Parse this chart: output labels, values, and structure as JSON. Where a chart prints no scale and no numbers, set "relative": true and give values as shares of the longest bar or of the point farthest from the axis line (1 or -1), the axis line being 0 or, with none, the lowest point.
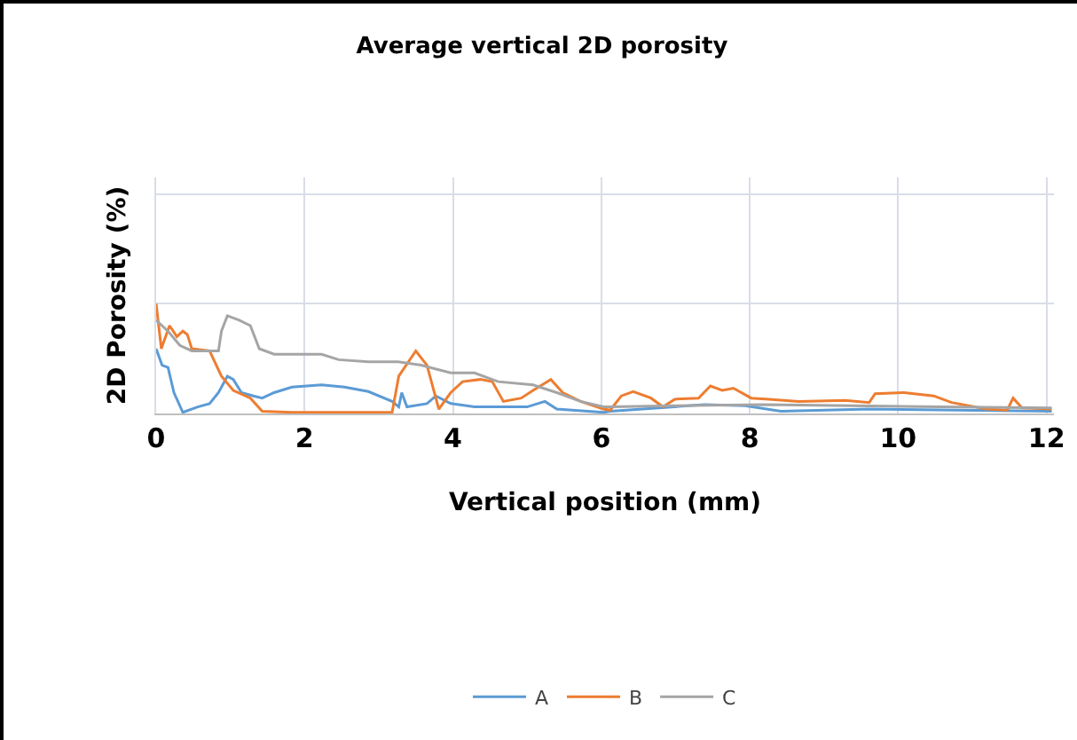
{
  "chart_data": {
    "type": "line",
    "title": "Average vertical 2D porosity",
    "xlabel": "Vertical position (mm)",
    "ylabel": "2D Porosity (%)",
    "relative": true,
    "xlim": [
      0,
      12.1
    ],
    "xticks": [
      0,
      2,
      4,
      6,
      8,
      10,
      12
    ],
    "grid": true,
    "legend": "bottom",
    "marker": "none",
    "line_style": "solid",
    "series": [
      {
        "name": "A",
        "color": "#5b9bd5",
        "x": [
          0,
          0.08,
          0.16,
          0.24,
          0.36,
          0.56,
          0.72,
          0.84,
          0.96,
          1.04,
          1.15,
          1.31,
          1.43,
          1.59,
          1.83,
          2.23,
          2.54,
          2.86,
          3.18,
          3.27,
          3.31,
          3.38,
          3.65,
          3.77,
          3.97,
          4.29,
          4.61,
          5.0,
          5.24,
          5.4,
          6.03,
          6.12,
          7.39,
          7.94,
          8.42,
          9.61,
          12.07
        ],
        "values": [
          0.59,
          0.44,
          0.42,
          0.19,
          0.01,
          0.06,
          0.09,
          0.19,
          0.34,
          0.31,
          0.19,
          0.16,
          0.14,
          0.19,
          0.24,
          0.26,
          0.24,
          0.2,
          0.11,
          0.06,
          0.19,
          0.06,
          0.09,
          0.16,
          0.09,
          0.06,
          0.06,
          0.06,
          0.11,
          0.04,
          0.01,
          0.02,
          0.08,
          0.07,
          0.02,
          0.04,
          0.02
        ]
      },
      {
        "name": "B",
        "color": "#ed7d31",
        "x": [
          0,
          0.07,
          0.18,
          0.28,
          0.36,
          0.42,
          0.48,
          0.72,
          0.88,
          1.04,
          1.27,
          1.43,
          1.83,
          3.18,
          3.27,
          3.5,
          3.65,
          3.81,
          3.97,
          4.13,
          4.37,
          4.53,
          4.68,
          4.92,
          5.08,
          5.32,
          5.48,
          5.72,
          6.03,
          6.12,
          6.27,
          6.43,
          6.67,
          6.83,
          6.99,
          7.31,
          7.47,
          7.63,
          7.78,
          8.02,
          8.26,
          8.66,
          9.29,
          9.61,
          9.69,
          10.08,
          10.48,
          10.72,
          11.19,
          11.47,
          11.55,
          11.67,
          12.07
        ],
        "values": [
          1.0,
          0.59,
          0.8,
          0.7,
          0.75,
          0.72,
          0.59,
          0.57,
          0.34,
          0.21,
          0.14,
          0.02,
          0.01,
          0.01,
          0.34,
          0.57,
          0.44,
          0.04,
          0.19,
          0.29,
          0.31,
          0.29,
          0.11,
          0.14,
          0.21,
          0.31,
          0.19,
          0.11,
          0.04,
          0.03,
          0.16,
          0.2,
          0.14,
          0.06,
          0.13,
          0.14,
          0.25,
          0.21,
          0.23,
          0.14,
          0.13,
          0.11,
          0.12,
          0.1,
          0.18,
          0.19,
          0.16,
          0.1,
          0.04,
          0.03,
          0.14,
          0.05,
          0.04
        ]
      },
      {
        "name": "C",
        "color": "#a5a5a5",
        "x": [
          0,
          0.16,
          0.32,
          0.48,
          0.84,
          0.88,
          0.96,
          1.12,
          1.27,
          1.39,
          1.59,
          1.99,
          2.23,
          2.46,
          2.86,
          3.26,
          3.57,
          3.97,
          4.29,
          4.61,
          5.08,
          5.4,
          5.72,
          6.03,
          6.12,
          6.99,
          8.18,
          9.37,
          10.56,
          12.07
        ],
        "values": [
          0.85,
          0.75,
          0.62,
          0.57,
          0.57,
          0.75,
          0.89,
          0.85,
          0.8,
          0.59,
          0.54,
          0.54,
          0.54,
          0.49,
          0.47,
          0.47,
          0.44,
          0.37,
          0.37,
          0.29,
          0.26,
          0.19,
          0.11,
          0.06,
          0.06,
          0.07,
          0.08,
          0.07,
          0.06,
          0.05
        ]
      }
    ]
  }
}
